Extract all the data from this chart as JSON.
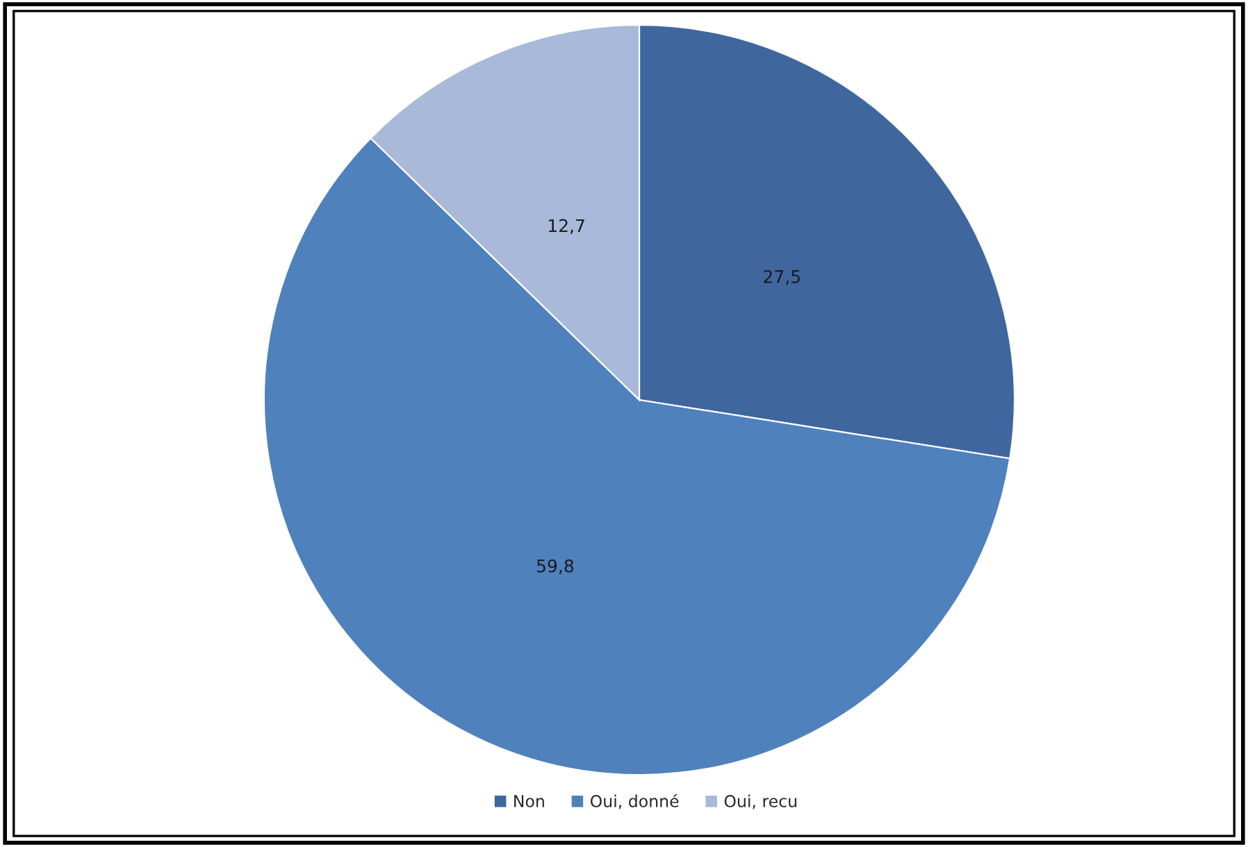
{
  "chart_data": {
    "type": "pie",
    "categories": [
      "Non",
      "Oui, donné",
      "Oui, recu"
    ],
    "values": [
      27.5,
      59.8,
      12.7
    ],
    "colors": [
      "#3f679e",
      "#4f81bd",
      "#a8b9d9"
    ],
    "value_labels": [
      "27,5",
      "59,8",
      "12,7"
    ],
    "legend": "bottom"
  }
}
